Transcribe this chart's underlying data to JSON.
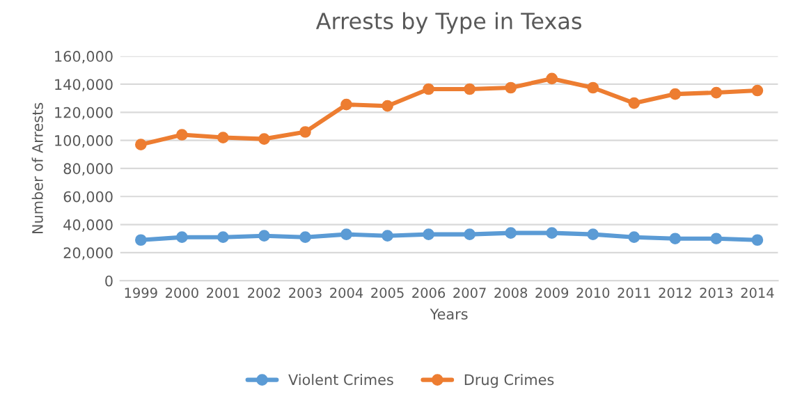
{
  "chart_data": {
    "type": "line",
    "title": "Arrests by Type in Texas",
    "xlabel": "Years",
    "ylabel": "Number of Arrests",
    "categories": [
      "1999",
      "2000",
      "2001",
      "2002",
      "2003",
      "2004",
      "2005",
      "2006",
      "2007",
      "2008",
      "2009",
      "2010",
      "2011",
      "2012",
      "2013",
      "2014"
    ],
    "series": [
      {
        "name": "Violent Crimes",
        "color": "#5b9bd5",
        "values": [
          29000,
          31000,
          31000,
          32000,
          31000,
          33000,
          32000,
          33000,
          33000,
          34000,
          34000,
          33000,
          31000,
          30000,
          30000,
          29000
        ]
      },
      {
        "name": "Drug Crimes",
        "color": "#ed7d31",
        "values": [
          97000,
          104000,
          102000,
          101000,
          106000,
          125500,
          124500,
          136500,
          136500,
          137500,
          144000,
          137500,
          126500,
          133000,
          134000,
          135500
        ]
      }
    ],
    "ylim": [
      0,
      160000
    ],
    "yticks": [
      {
        "value": 0,
        "label": "0"
      },
      {
        "value": 20000,
        "label": "20,000"
      },
      {
        "value": 40000,
        "label": "40,000"
      },
      {
        "value": 60000,
        "label": "60,000"
      },
      {
        "value": 80000,
        "label": "80,000"
      },
      {
        "value": 100000,
        "label": "100,000"
      },
      {
        "value": 120000,
        "label": "120,000"
      },
      {
        "value": 140000,
        "label": "140,000"
      },
      {
        "value": 160000,
        "label": "160,000"
      }
    ],
    "grid": "y",
    "legend": "bottom",
    "marker": "circle",
    "line_style": "solid"
  }
}
